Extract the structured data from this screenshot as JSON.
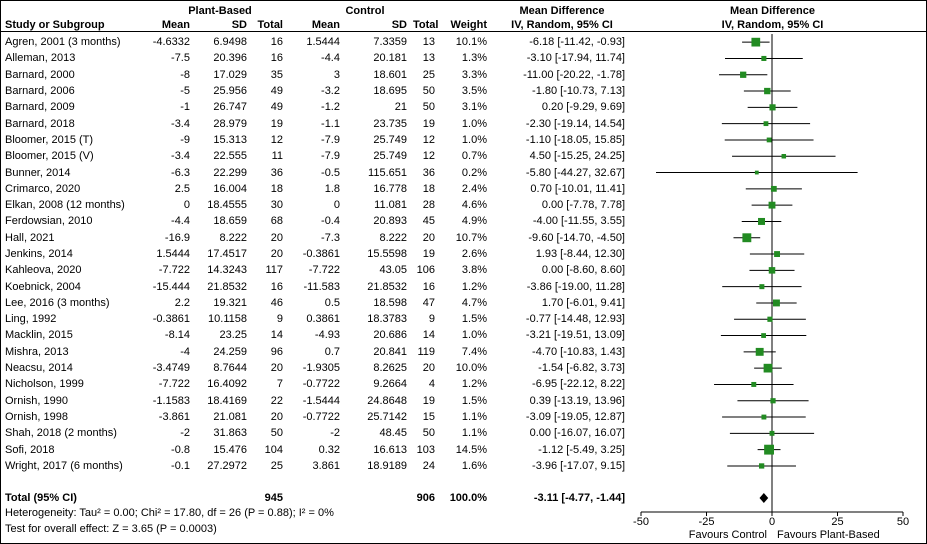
{
  "chart_data": {
    "type": "forest",
    "effect_measure": "Mean Difference",
    "model": "IV, Random, 95% CI",
    "xlim": [
      -50,
      50
    ],
    "tick_values": [
      -50,
      -25,
      0,
      25,
      50
    ],
    "ticks": [
      "-50",
      "-25",
      "0",
      "25",
      "50"
    ],
    "favours_left": "Favours Control",
    "favours_right": "Favours Plant-Based",
    "columns": {
      "study": "Study or Subgroup",
      "group1": "Plant-Based",
      "group2": "Control",
      "mean": "Mean",
      "sd": "SD",
      "total": "Total",
      "weight": "Weight",
      "effect_header": "Mean Difference",
      "effect_sub": "IV, Random, 95% CI"
    },
    "studies": [
      {
        "name": "Agren, 2001 (3 months)",
        "pb_mean": "-4.6332",
        "pb_sd": "6.9498",
        "pb_total": "16",
        "c_mean": "1.5444",
        "c_sd": "7.3359",
        "c_total": "13",
        "weight": "10.1%",
        "ci": "-6.18 [-11.42, -0.93]",
        "est": -6.18,
        "lo": -11.42,
        "hi": -0.93,
        "w": 10.1
      },
      {
        "name": "Alleman, 2013",
        "pb_mean": "-7.5",
        "pb_sd": "20.396",
        "pb_total": "16",
        "c_mean": "-4.4",
        "c_sd": "20.181",
        "c_total": "13",
        "weight": "1.3%",
        "ci": "-3.10 [-17.94, 11.74]",
        "est": -3.1,
        "lo": -17.94,
        "hi": 11.74,
        "w": 1.3
      },
      {
        "name": "Barnard, 2000",
        "pb_mean": "-8",
        "pb_sd": "17.029",
        "pb_total": "35",
        "c_mean": "3",
        "c_sd": "18.601",
        "c_total": "25",
        "weight": "3.3%",
        "ci": "-11.00 [-20.22, -1.78]",
        "est": -11.0,
        "lo": -20.22,
        "hi": -1.78,
        "w": 3.3
      },
      {
        "name": "Barnard, 2006",
        "pb_mean": "-5",
        "pb_sd": "25.956",
        "pb_total": "49",
        "c_mean": "-3.2",
        "c_sd": "18.695",
        "c_total": "50",
        "weight": "3.5%",
        "ci": "-1.80 [-10.73, 7.13]",
        "est": -1.8,
        "lo": -10.73,
        "hi": 7.13,
        "w": 3.5
      },
      {
        "name": "Barnard, 2009",
        "pb_mean": "-1",
        "pb_sd": "26.747",
        "pb_total": "49",
        "c_mean": "-1.2",
        "c_sd": "21",
        "c_total": "50",
        "weight": "3.1%",
        "ci": "0.20 [-9.29, 9.69]",
        "est": 0.2,
        "lo": -9.29,
        "hi": 9.69,
        "w": 3.1
      },
      {
        "name": "Barnard, 2018",
        "pb_mean": "-3.4",
        "pb_sd": "28.979",
        "pb_total": "19",
        "c_mean": "-1.1",
        "c_sd": "23.735",
        "c_total": "19",
        "weight": "1.0%",
        "ci": "-2.30 [-19.14, 14.54]",
        "est": -2.3,
        "lo": -19.14,
        "hi": 14.54,
        "w": 1.0
      },
      {
        "name": "Bloomer, 2015 (T)",
        "pb_mean": "-9",
        "pb_sd": "15.313",
        "pb_total": "12",
        "c_mean": "-7.9",
        "c_sd": "25.749",
        "c_total": "12",
        "weight": "1.0%",
        "ci": "-1.10 [-18.05, 15.85]",
        "est": -1.1,
        "lo": -18.05,
        "hi": 15.85,
        "w": 1.0
      },
      {
        "name": "Bloomer, 2015 (V)",
        "pb_mean": "-3.4",
        "pb_sd": "22.555",
        "pb_total": "11",
        "c_mean": "-7.9",
        "c_sd": "25.749",
        "c_total": "12",
        "weight": "0.7%",
        "ci": "4.50 [-15.25, 24.25]",
        "est": 4.5,
        "lo": -15.25,
        "hi": 24.25,
        "w": 0.7
      },
      {
        "name": "Bunner, 2014",
        "pb_mean": "-6.3",
        "pb_sd": "22.299",
        "pb_total": "36",
        "c_mean": "-0.5",
        "c_sd": "115.651",
        "c_total": "36",
        "weight": "0.2%",
        "ci": "-5.80 [-44.27, 32.67]",
        "est": -5.8,
        "lo": -44.27,
        "hi": 32.67,
        "w": 0.2
      },
      {
        "name": "Crimarco, 2020",
        "pb_mean": "2.5",
        "pb_sd": "16.004",
        "pb_total": "18",
        "c_mean": "1.8",
        "c_sd": "16.778",
        "c_total": "18",
        "weight": "2.4%",
        "ci": "0.70 [-10.01, 11.41]",
        "est": 0.7,
        "lo": -10.01,
        "hi": 11.41,
        "w": 2.4
      },
      {
        "name": "Elkan, 2008 (12 months)",
        "pb_mean": "0",
        "pb_sd": "18.4555",
        "pb_total": "30",
        "c_mean": "0",
        "c_sd": "11.081",
        "c_total": "28",
        "weight": "4.6%",
        "ci": "0.00 [-7.78, 7.78]",
        "est": 0.0,
        "lo": -7.78,
        "hi": 7.78,
        "w": 4.6
      },
      {
        "name": "Ferdowsian, 2010",
        "pb_mean": "-4.4",
        "pb_sd": "18.659",
        "pb_total": "68",
        "c_mean": "-0.4",
        "c_sd": "20.893",
        "c_total": "45",
        "weight": "4.9%",
        "ci": "-4.00 [-11.55, 3.55]",
        "est": -4.0,
        "lo": -11.55,
        "hi": 3.55,
        "w": 4.9
      },
      {
        "name": "Hall, 2021",
        "pb_mean": "-16.9",
        "pb_sd": "8.222",
        "pb_total": "20",
        "c_mean": "-7.3",
        "c_sd": "8.222",
        "c_total": "20",
        "weight": "10.7%",
        "ci": "-9.60 [-14.70, -4.50]",
        "est": -9.6,
        "lo": -14.7,
        "hi": -4.5,
        "w": 10.7
      },
      {
        "name": "Jenkins, 2014",
        "pb_mean": "1.5444",
        "pb_sd": "17.4517",
        "pb_total": "20",
        "c_mean": "-0.3861",
        "c_sd": "15.5598",
        "c_total": "19",
        "weight": "2.6%",
        "ci": "1.93 [-8.44, 12.30]",
        "est": 1.93,
        "lo": -8.44,
        "hi": 12.3,
        "w": 2.6
      },
      {
        "name": "Kahleova, 2020",
        "pb_mean": "-7.722",
        "pb_sd": "14.3243",
        "pb_total": "117",
        "c_mean": "-7.722",
        "c_sd": "43.05",
        "c_total": "106",
        "weight": "3.8%",
        "ci": "0.00 [-8.60, 8.60]",
        "est": 0.0,
        "lo": -8.6,
        "hi": 8.6,
        "w": 3.8
      },
      {
        "name": "Koebnick, 2004",
        "pb_mean": "-15.444",
        "pb_sd": "21.8532",
        "pb_total": "16",
        "c_mean": "-11.583",
        "c_sd": "21.8532",
        "c_total": "16",
        "weight": "1.2%",
        "ci": "-3.86 [-19.00, 11.28]",
        "est": -3.86,
        "lo": -19.0,
        "hi": 11.28,
        "w": 1.2
      },
      {
        "name": "Lee, 2016 (3 months)",
        "pb_mean": "2.2",
        "pb_sd": "19.321",
        "pb_total": "46",
        "c_mean": "0.5",
        "c_sd": "18.598",
        "c_total": "47",
        "weight": "4.7%",
        "ci": "1.70 [-6.01, 9.41]",
        "est": 1.7,
        "lo": -6.01,
        "hi": 9.41,
        "w": 4.7
      },
      {
        "name": "Ling, 1992",
        "pb_mean": "-0.3861",
        "pb_sd": "10.1158",
        "pb_total": "9",
        "c_mean": "0.3861",
        "c_sd": "18.3783",
        "c_total": "9",
        "weight": "1.5%",
        "ci": "-0.77 [-14.48, 12.93]",
        "est": -0.77,
        "lo": -14.48,
        "hi": 12.93,
        "w": 1.5
      },
      {
        "name": "Macklin, 2015",
        "pb_mean": "-8.14",
        "pb_sd": "23.25",
        "pb_total": "14",
        "c_mean": "-4.93",
        "c_sd": "20.686",
        "c_total": "14",
        "weight": "1.0%",
        "ci": "-3.21 [-19.51, 13.09]",
        "est": -3.21,
        "lo": -19.51,
        "hi": 13.09,
        "w": 1.0
      },
      {
        "name": "Mishra, 2013",
        "pb_mean": "-4",
        "pb_sd": "24.259",
        "pb_total": "96",
        "c_mean": "0.7",
        "c_sd": "20.841",
        "c_total": "119",
        "weight": "7.4%",
        "ci": "-4.70 [-10.83, 1.43]",
        "est": -4.7,
        "lo": -10.83,
        "hi": 1.43,
        "w": 7.4
      },
      {
        "name": "Neacsu, 2014",
        "pb_mean": "-3.4749",
        "pb_sd": "8.7644",
        "pb_total": "20",
        "c_mean": "-1.9305",
        "c_sd": "8.2625",
        "c_total": "20",
        "weight": "10.0%",
        "ci": "-1.54 [-6.82, 3.73]",
        "est": -1.54,
        "lo": -6.82,
        "hi": 3.73,
        "w": 10.0
      },
      {
        "name": "Nicholson, 1999",
        "pb_mean": "-7.722",
        "pb_sd": "16.4092",
        "pb_total": "7",
        "c_mean": "-0.7722",
        "c_sd": "9.2664",
        "c_total": "4",
        "weight": "1.2%",
        "ci": "-6.95 [-22.12, 8.22]",
        "est": -6.95,
        "lo": -22.12,
        "hi": 8.22,
        "w": 1.2
      },
      {
        "name": "Ornish, 1990",
        "pb_mean": "-1.1583",
        "pb_sd": "18.4169",
        "pb_total": "22",
        "c_mean": "-1.5444",
        "c_sd": "24.8648",
        "c_total": "19",
        "weight": "1.5%",
        "ci": "0.39 [-13.19, 13.96]",
        "est": 0.39,
        "lo": -13.19,
        "hi": 13.96,
        "w": 1.5
      },
      {
        "name": "Ornish, 1998",
        "pb_mean": "-3.861",
        "pb_sd": "21.081",
        "pb_total": "20",
        "c_mean": "-0.7722",
        "c_sd": "25.7142",
        "c_total": "15",
        "weight": "1.1%",
        "ci": "-3.09 [-19.05, 12.87]",
        "est": -3.09,
        "lo": -19.05,
        "hi": 12.87,
        "w": 1.1
      },
      {
        "name": "Shah, 2018 (2 months)",
        "pb_mean": "-2",
        "pb_sd": "31.863",
        "pb_total": "50",
        "c_mean": "-2",
        "c_sd": "48.45",
        "c_total": "50",
        "weight": "1.1%",
        "ci": "0.00 [-16.07, 16.07]",
        "est": 0.0,
        "lo": -16.07,
        "hi": 16.07,
        "w": 1.1
      },
      {
        "name": "Sofi, 2018",
        "pb_mean": "-0.8",
        "pb_sd": "15.476",
        "pb_total": "104",
        "c_mean": "0.32",
        "c_sd": "16.613",
        "c_total": "103",
        "weight": "14.5%",
        "ci": "-1.12 [-5.49, 3.25]",
        "est": -1.12,
        "lo": -5.49,
        "hi": 3.25,
        "w": 14.5
      },
      {
        "name": "Wright, 2017 (6 months)",
        "pb_mean": "-0.1",
        "pb_sd": "27.2972",
        "pb_total": "25",
        "c_mean": "3.861",
        "c_sd": "18.9189",
        "c_total": "24",
        "weight": "1.6%",
        "ci": "-3.96 [-17.07, 9.15]",
        "est": -3.96,
        "lo": -17.07,
        "hi": 9.15,
        "w": 1.6
      }
    ],
    "total": {
      "label": "Total (95% CI)",
      "pb_total": "945",
      "c_total": "906",
      "weight": "100.0%",
      "ci": "-3.11 [-4.77, -1.44]",
      "est": -3.11,
      "lo": -4.77,
      "hi": -1.44
    },
    "heterogeneity": "Heterogeneity: Tau² = 0.00; Chi² = 17.80, df = 26 (P = 0.88); I² = 0%",
    "overall_effect": "Test for overall effect: Z = 3.65 (P = 0.0003)",
    "colors": {
      "square": "#228B22",
      "line": "#000000",
      "diamond": "#000000"
    }
  }
}
